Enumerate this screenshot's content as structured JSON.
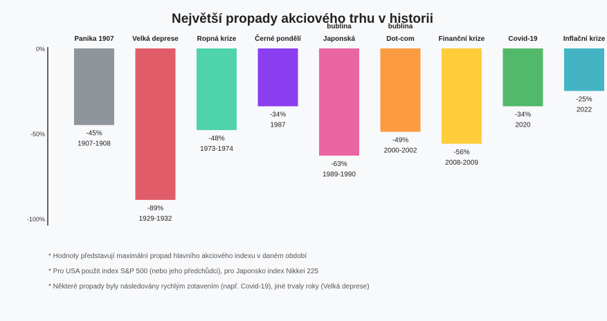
{
  "chart_data": {
    "type": "bar",
    "title": "Největší propady akciového trhu v historii",
    "categories": [
      "Panika 1907",
      "Velká deprese",
      "Ropná krize",
      "Černé pondělí",
      "Japonská bublina",
      "Dot-com bublina",
      "Finanční krize",
      "Covid-19",
      "Inflační krize"
    ],
    "category_lines": [
      [
        "Panika 1907"
      ],
      [
        "Velká deprese"
      ],
      [
        "Ropná krize"
      ],
      [
        "Černé pondělí"
      ],
      [
        "bublina",
        "Japonská"
      ],
      [
        "bublina",
        "Dot-com"
      ],
      [
        "Finanční krize"
      ],
      [
        "Covid-19"
      ],
      [
        "Inflační krize"
      ]
    ],
    "values": [
      -45,
      -89,
      -48,
      -34,
      -63,
      -49,
      -56,
      -34,
      -25
    ],
    "value_labels": [
      "-45%",
      "-89%",
      "-48%",
      "-34%",
      "-63%",
      "-49%",
      "-56%",
      "-34%",
      "-25%"
    ],
    "periods": [
      "1907-1908",
      "1929-1932",
      "1973-1974",
      "1987",
      "1989-1990",
      "2000-2002",
      "2008-2009",
      "2020",
      "2022"
    ],
    "colors": [
      "#8e959b",
      "#e05c69",
      "#4fd4aa",
      "#8a3ef0",
      "#ea66a2",
      "#fd9b40",
      "#ffcc3a",
      "#52b96a",
      "#44b4c4"
    ],
    "yticks": [
      0,
      -50,
      -100
    ],
    "ytick_labels": [
      "0%",
      "-50%",
      "-100%"
    ],
    "ylim": [
      -100,
      0
    ],
    "grid": false,
    "legend": "none"
  },
  "notes": [
    "* Hodnoty představují maximální propad hlavního akciového indexu v daném období",
    "* Pro USA použit index S&P 500 (nebo jeho předchůdci), pro Japonsko index Nikkei 225",
    "* Některé propady byly následovány rychlým zotavením (např. Covid-19), jiné trvaly roky (Velká deprese)"
  ]
}
